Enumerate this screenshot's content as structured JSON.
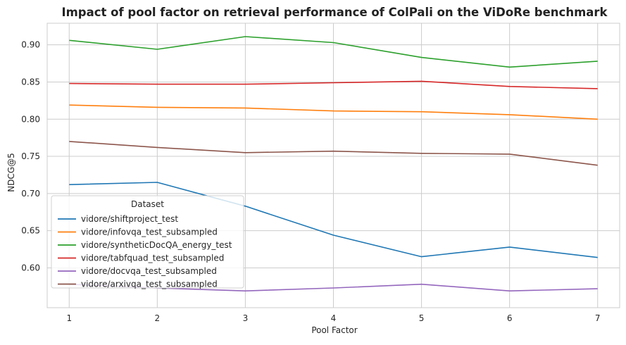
{
  "chart_data": {
    "type": "line",
    "title": "Impact of pool factor on retrieval performance of ColPali on the ViDoRe benchmark",
    "xlabel": "Pool Factor",
    "ylabel": "NDCG@5",
    "x": [
      1,
      2,
      3,
      4,
      5,
      6,
      7
    ],
    "xlim": [
      0.75,
      7.25
    ],
    "ylim": [
      0.5465,
      0.929
    ],
    "yticks": [
      0.6,
      0.65,
      0.7,
      0.75,
      0.8,
      0.85,
      0.9
    ],
    "ytick_labels": [
      "0.60",
      "0.65",
      "0.70",
      "0.75",
      "0.80",
      "0.85",
      "0.90"
    ],
    "xtick_labels": [
      "1",
      "2",
      "3",
      "4",
      "5",
      "6",
      "7"
    ],
    "grid": true,
    "legend": {
      "title": "Dataset",
      "placement": "lower-left"
    },
    "series": [
      {
        "name": "vidore/shiftproject_test",
        "color": "#1f77b4",
        "values": [
          0.712,
          0.715,
          0.683,
          0.644,
          0.615,
          0.628,
          0.614
        ]
      },
      {
        "name": "vidore/infovqa_test_subsampled",
        "color": "#ff7f0e",
        "values": [
          0.819,
          0.816,
          0.815,
          0.811,
          0.81,
          0.806,
          0.8
        ]
      },
      {
        "name": "vidore/syntheticDocQA_energy_test",
        "color": "#2ca02c",
        "values": [
          0.906,
          0.894,
          0.911,
          0.903,
          0.883,
          0.87,
          0.878
        ]
      },
      {
        "name": "vidore/tabfquad_test_subsampled",
        "color": "#d62728",
        "values": [
          0.848,
          0.847,
          0.847,
          0.849,
          0.851,
          0.844,
          0.841
        ]
      },
      {
        "name": "vidore/docvqa_test_subsampled",
        "color": "#9467bd",
        "values": [
          0.578,
          0.573,
          0.569,
          0.573,
          0.578,
          0.569,
          0.572
        ]
      },
      {
        "name": "vidore/arxivqa_test_subsampled",
        "color": "#8c564b",
        "values": [
          0.77,
          0.762,
          0.755,
          0.757,
          0.754,
          0.753,
          0.738
        ]
      }
    ]
  }
}
